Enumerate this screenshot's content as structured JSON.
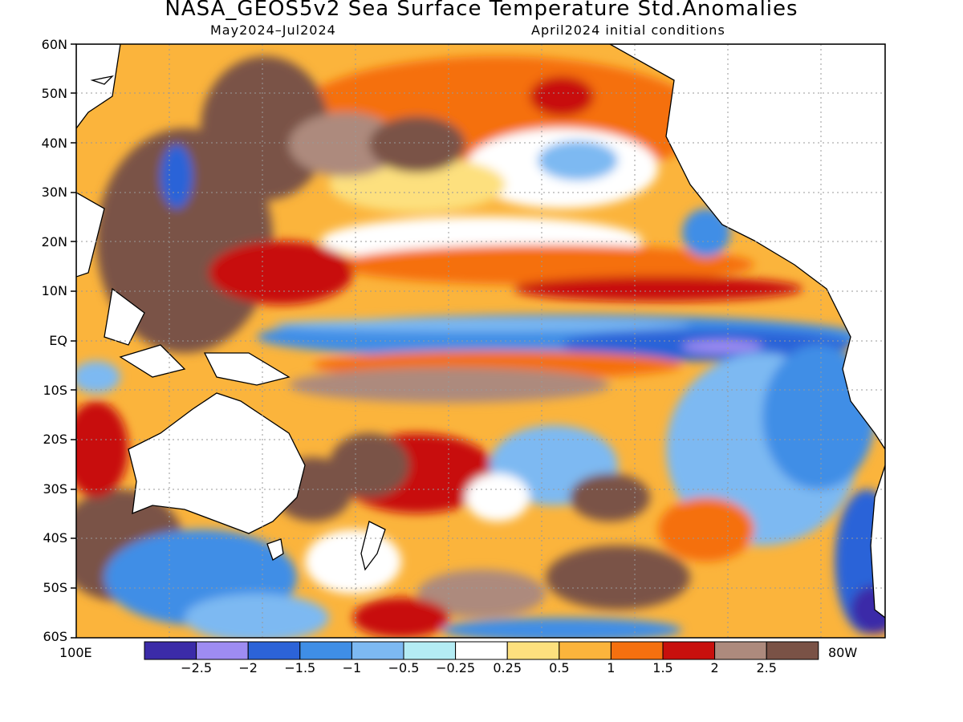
{
  "title": "NASA_GEOS5v2 Sea Surface Temperature Std.Anomalies",
  "subtitle_left": "May2024–Jul2024",
  "subtitle_right": "April2024 initial conditions",
  "lat_labels": [
    "60N",
    "50N",
    "40N",
    "30N",
    "20N",
    "10N",
    "EQ",
    "10S",
    "20S",
    "30S",
    "40S",
    "50S",
    "60S"
  ],
  "lon_left": "100E",
  "lon_right": "80W",
  "colorbar": {
    "labels": [
      "-2.5",
      "-2",
      "-1.5",
      "-1",
      "-0.5",
      "-0.25",
      "0.25",
      "0.5",
      "1",
      "1.5",
      "2",
      "2.5"
    ],
    "colors": [
      "#3b2ba8",
      "#9e8cf2",
      "#2c63d8",
      "#3f8ee6",
      "#7db9f2",
      "#b4ecf4",
      "#ffffff",
      "#fde07e",
      "#fbb43c",
      "#f5700f",
      "#c8100d",
      "#ad8a7d",
      "#7a5246"
    ]
  }
}
